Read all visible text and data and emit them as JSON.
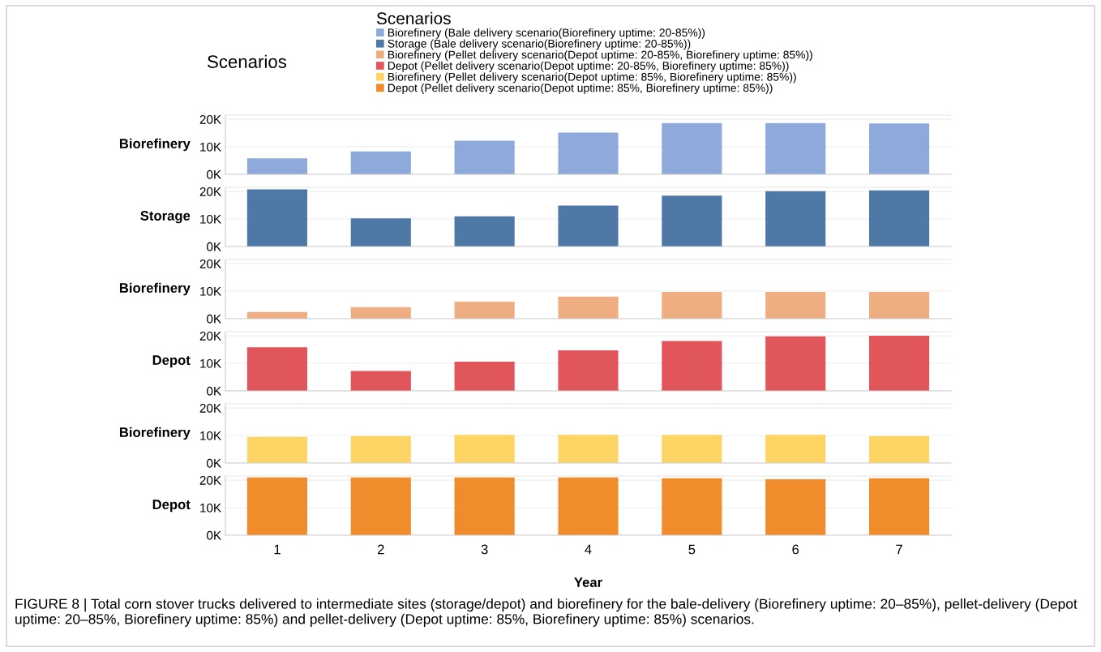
{
  "chart_data": [
    {
      "type": "bar",
      "title": "Scenarios",
      "legend_title": "Scenarios",
      "legend": "top",
      "ylabel": "Biorefinery",
      "categories": [
        "1",
        "2",
        "3",
        "4",
        "5",
        "6",
        "7"
      ],
      "tick_labels": "y",
      "grid": "y",
      "ylim": [
        0,
        21500
      ],
      "yticks": [
        {
          "value": 0,
          "label": "0K"
        },
        {
          "value": 10000,
          "label": "10K"
        },
        {
          "value": 20000,
          "label": "20K"
        }
      ],
      "series": [
        {
          "name": "Biorefinery (Bale delivery scenario(Biorefinery uptime: 20-85%))",
          "color": "#8eaadb",
          "values": [
            5800,
            8300,
            12200,
            15200,
            18600,
            18600,
            18500
          ]
        }
      ]
    },
    {
      "type": "bar",
      "legend": "top",
      "ylabel": "Storage",
      "categories": [
        "1",
        "2",
        "3",
        "4",
        "5",
        "6",
        "7"
      ],
      "tick_labels": "y",
      "grid": "y",
      "ylim": [
        0,
        21500
      ],
      "yticks": [
        {
          "value": 0,
          "label": "0K"
        },
        {
          "value": 10000,
          "label": "10K"
        },
        {
          "value": 20000,
          "label": "20K"
        }
      ],
      "series": [
        {
          "name": "Storage (Bale delivery scenario(Biorefinery uptime: 20-85%))",
          "color": "#4e79a7",
          "values": [
            20800,
            10200,
            11000,
            14900,
            18500,
            20100,
            20400
          ]
        }
      ]
    },
    {
      "type": "bar",
      "legend": "top",
      "ylabel": "Biorefinery",
      "categories": [
        "1",
        "2",
        "3",
        "4",
        "5",
        "6",
        "7"
      ],
      "tick_labels": "y",
      "grid": "y",
      "ylim": [
        0,
        21500
      ],
      "yticks": [
        {
          "value": 0,
          "label": "0K"
        },
        {
          "value": 10000,
          "label": "10K"
        },
        {
          "value": 20000,
          "label": "20K"
        }
      ],
      "series": [
        {
          "name": "Biorefinery (Pellet delivery scenario(Depot uptime: 20-85%, Biorefinery uptime: 85%))",
          "color": "#efae82",
          "values": [
            2400,
            4200,
            6200,
            8000,
            9700,
            9700,
            9700
          ]
        }
      ]
    },
    {
      "type": "bar",
      "legend": "top",
      "ylabel": "Depot",
      "categories": [
        "1",
        "2",
        "3",
        "4",
        "5",
        "6",
        "7"
      ],
      "tick_labels": "y",
      "grid": "y",
      "ylim": [
        0,
        21500
      ],
      "yticks": [
        {
          "value": 0,
          "label": "0K"
        },
        {
          "value": 10000,
          "label": "10K"
        },
        {
          "value": 20000,
          "label": "20K"
        }
      ],
      "series": [
        {
          "name": "Depot (Pellet delivery scenario(Depot uptime: 20-85%, Biorefinery uptime: 85%))",
          "color": "#e1565b",
          "values": [
            15800,
            7200,
            10600,
            14700,
            18100,
            19800,
            20000
          ]
        }
      ]
    },
    {
      "type": "bar",
      "legend": "top",
      "ylabel": "Biorefinery",
      "categories": [
        "1",
        "2",
        "3",
        "4",
        "5",
        "6",
        "7"
      ],
      "tick_labels": "y",
      "grid": "y",
      "ylim": [
        0,
        21500
      ],
      "yticks": [
        {
          "value": 0,
          "label": "0K"
        },
        {
          "value": 10000,
          "label": "10K"
        },
        {
          "value": 20000,
          "label": "20K"
        }
      ],
      "series": [
        {
          "name": "Biorefinery (Pellet delivery scenario(Depot uptime: 85%, Biorefinery uptime: 85%))",
          "color": "#fdd565",
          "values": [
            9500,
            9800,
            10200,
            10200,
            10200,
            10200,
            9800
          ]
        }
      ]
    },
    {
      "type": "bar",
      "legend": "top",
      "ylabel": "Depot",
      "xlabel": "Year",
      "categories": [
        "1",
        "2",
        "3",
        "4",
        "5",
        "6",
        "7"
      ],
      "grid": "y",
      "ylim": [
        0,
        21500
      ],
      "yticks": [
        {
          "value": 0,
          "label": "0K"
        },
        {
          "value": 10000,
          "label": "10K"
        },
        {
          "value": 20000,
          "label": "20K"
        }
      ],
      "annotations": [
        "FIGURE 8 | Total corn stover trucks delivered to intermediate sites (storage/depot) and biorefinery for the bale-delivery (Biorefinery uptime: 20–85%), pellet-delivery (Depot uptime: 20–85%, Biorefinery uptime: 85%) and pellet-delivery (Depot uptime: 85%, Biorefinery uptime: 85%) scenarios."
      ],
      "series": [
        {
          "name": "Depot (Pellet delivery scenario(Depot uptime: 85%, Biorefinery uptime: 85%))",
          "color": "#f08c2c",
          "values": [
            21000,
            21000,
            21000,
            21000,
            20700,
            20300,
            20700
          ]
        }
      ]
    }
  ]
}
